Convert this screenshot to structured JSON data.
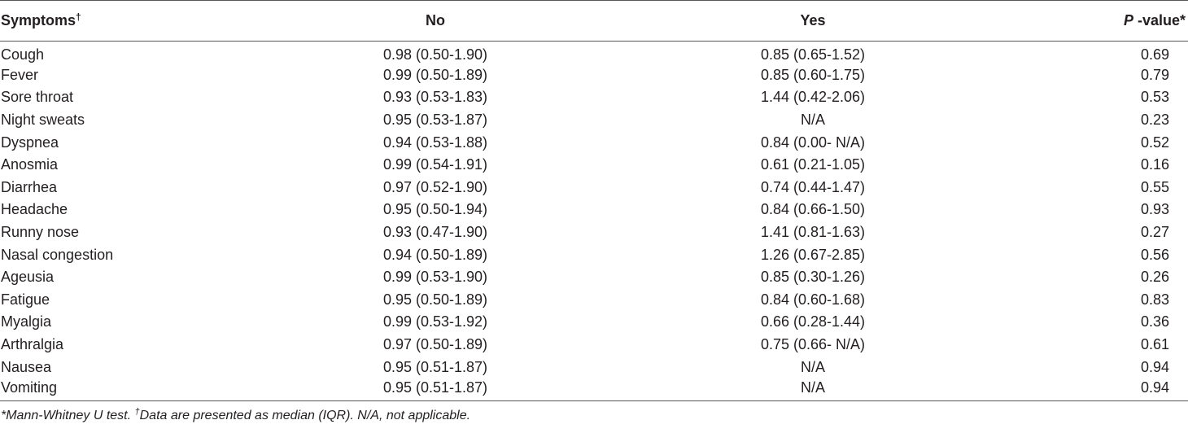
{
  "table": {
    "headers": {
      "symptoms": "Symptoms",
      "symptoms_mark": "†",
      "no": "No",
      "yes": "Yes",
      "p_label": "P",
      "p_suffix": " -value*"
    },
    "rows": [
      {
        "symptom": "Cough",
        "no": "0.98 (0.50-1.90)",
        "yes": "0.85 (0.65-1.52)",
        "p": "0.69"
      },
      {
        "symptom": "Fever",
        "no": "0.99 (0.50-1.89)",
        "yes": "0.85 (0.60-1.75)",
        "p": "0.79"
      },
      {
        "symptom": "Sore throat",
        "no": "0.93 (0.53-1.83)",
        "yes": "1.44 (0.42-2.06)",
        "p": "0.53"
      },
      {
        "symptom": "Night sweats",
        "no": "0.95 (0.53-1.87)",
        "yes": "N/A",
        "p": "0.23"
      },
      {
        "symptom": "Dyspnea",
        "no": "0.94 (0.53-1.88)",
        "yes": "0.84 (0.00- N/A)",
        "p": "0.52"
      },
      {
        "symptom": "Anosmia",
        "no": "0.99 (0.54-1.91)",
        "yes": "0.61 (0.21-1.05)",
        "p": "0.16"
      },
      {
        "symptom": "Diarrhea",
        "no": "0.97 (0.52-1.90)",
        "yes": "0.74 (0.44-1.47)",
        "p": "0.55"
      },
      {
        "symptom": "Headache",
        "no": "0.95 (0.50-1.94)",
        "yes": "0.84 (0.66-1.50)",
        "p": "0.93"
      },
      {
        "symptom": "Runny nose",
        "no": "0.93 (0.47-1.90)",
        "yes": "1.41 (0.81-1.63)",
        "p": "0.27"
      },
      {
        "symptom": "Nasal congestion",
        "no": "0.94 (0.50-1.89)",
        "yes": "1.26 (0.67-2.85)",
        "p": "0.56"
      },
      {
        "symptom": "Ageusia",
        "no": "0.99 (0.53-1.90)",
        "yes": "0.85 (0.30-1.26)",
        "p": "0.26"
      },
      {
        "symptom": "Fatigue",
        "no": "0.95 (0.50-1.89)",
        "yes": "0.84 (0.60-1.68)",
        "p": "0.83"
      },
      {
        "symptom": "Myalgia",
        "no": "0.99 (0.53-1.92)",
        "yes": "0.66 (0.28-1.44)",
        "p": "0.36"
      },
      {
        "symptom": "Arthralgia",
        "no": "0.97 (0.50-1.89)",
        "yes": "0.75 (0.66- N/A)",
        "p": "0.61"
      },
      {
        "symptom": "Nausea",
        "no": "0.95 (0.51-1.87)",
        "yes": "N/A",
        "p": "0.94"
      },
      {
        "symptom": "Vomiting",
        "no": "0.95 (0.51-1.87)",
        "yes": "N/A",
        "p": "0.94"
      }
    ]
  },
  "footnote": {
    "part1": "*Mann-Whitney U test. ",
    "mark": "†",
    "part2": "Data are presented as median (IQR). N/A, not applicable."
  }
}
